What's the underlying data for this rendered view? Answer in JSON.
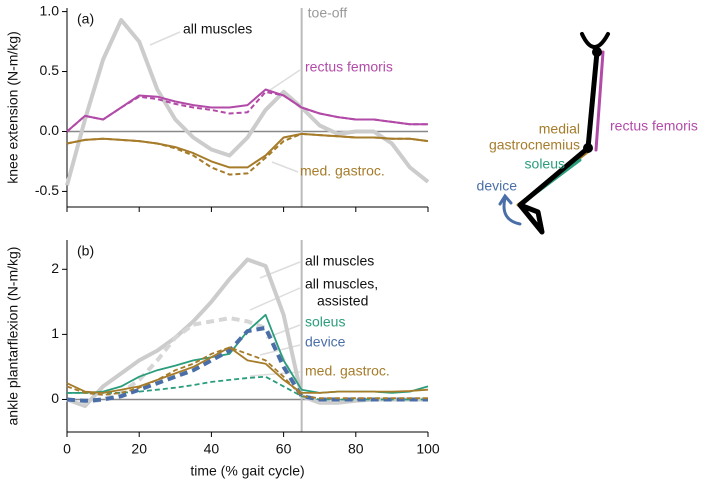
{
  "chart_data": [
    {
      "type": "line",
      "panel_label": "(a)",
      "y_label": "knee extension (N-m/kg)",
      "x": [
        0,
        5,
        10,
        15,
        20,
        25,
        30,
        35,
        40,
        45,
        50,
        55,
        60,
        65,
        70,
        75,
        80,
        85,
        90,
        95,
        100
      ],
      "xlim": [
        0,
        100
      ],
      "xticks": [
        0,
        20,
        40,
        60,
        80,
        100
      ],
      "ylim": [
        -0.63,
        1.03
      ],
      "yticks": [
        -0.5,
        {
          "value": 0,
          "label": "0.0"
        },
        0.5,
        {
          "value": 1,
          "label": "1.0"
        }
      ],
      "toe_off": 65,
      "toe_off_label": "toe-off",
      "series": [
        {
          "name": "all muscles",
          "color": "#cccccc",
          "width": 4,
          "dashed": false,
          "values": [
            -0.45,
            0.1,
            0.6,
            0.93,
            0.75,
            0.35,
            0.1,
            -0.05,
            -0.15,
            -0.2,
            -0.05,
            0.18,
            0.33,
            0.2,
            0.05,
            -0.02,
            0,
            0,
            -0.1,
            -0.3,
            -0.42
          ]
        },
        {
          "name": "rectus femoris",
          "color": "#b24aa8",
          "width": 2,
          "dashed": false,
          "values": [
            0,
            0.13,
            0.1,
            0.2,
            0.3,
            0.29,
            0.25,
            0.22,
            0.2,
            0.2,
            0.22,
            0.35,
            0.3,
            0.2,
            0.15,
            0.12,
            0.1,
            0.1,
            0.08,
            0.06,
            0.06
          ]
        },
        {
          "color": "#b24aa8",
          "width": 2,
          "dashed": true,
          "values": [
            0,
            0.13,
            0.1,
            0.2,
            0.29,
            0.27,
            0.23,
            0.2,
            0.18,
            0.15,
            0.16,
            0.33,
            0.3,
            0.2,
            0.15,
            0.12,
            0.1,
            0.1,
            0.08,
            0.06,
            0.06
          ]
        },
        {
          "name": "med. gastroc.",
          "color": "#a67c2a",
          "width": 2,
          "dashed": false,
          "values": [
            -0.1,
            -0.07,
            -0.06,
            -0.07,
            -0.08,
            -0.1,
            -0.13,
            -0.18,
            -0.25,
            -0.3,
            -0.3,
            -0.2,
            -0.05,
            -0.02,
            -0.03,
            -0.04,
            -0.05,
            -0.05,
            -0.06,
            -0.06,
            -0.08
          ]
        },
        {
          "color": "#a67c2a",
          "width": 2,
          "dashed": true,
          "values": [
            -0.1,
            -0.07,
            -0.06,
            -0.07,
            -0.08,
            -0.1,
            -0.14,
            -0.2,
            -0.3,
            -0.36,
            -0.35,
            -0.22,
            -0.08,
            -0.02,
            -0.03,
            -0.04,
            -0.05,
            -0.05,
            -0.06,
            -0.06,
            -0.08
          ]
        }
      ]
    },
    {
      "type": "line",
      "panel_label": "(b)",
      "y_label": "ankle plantarflexion (N-m/kg)",
      "x_label": "time (% gait cycle)",
      "x": [
        0,
        5,
        10,
        15,
        20,
        25,
        30,
        35,
        40,
        45,
        50,
        55,
        60,
        65,
        70,
        75,
        80,
        85,
        90,
        95,
        100
      ],
      "xlim": [
        0,
        100
      ],
      "xticks": [
        0,
        20,
        40,
        60,
        80,
        100
      ],
      "ylim": [
        -0.5,
        2.45
      ],
      "yticks": [
        0,
        1,
        2
      ],
      "toe_off": 65,
      "series": [
        {
          "name": "all muscles",
          "color": "#cccccc",
          "width": 4,
          "dashed": false,
          "values": [
            0,
            -0.1,
            0.2,
            0.4,
            0.6,
            0.75,
            0.95,
            1.2,
            1.5,
            1.85,
            2.15,
            2.05,
            1.3,
            0.05,
            -0.05,
            -0.05,
            -0.02,
            0,
            0,
            0,
            0
          ]
        },
        {
          "name": [
            "all muscles,",
            "assisted"
          ],
          "color": "#d6d6d6",
          "width": 4,
          "dashed": true,
          "values": [
            0,
            -0.05,
            0,
            0.1,
            0.3,
            0.6,
            0.95,
            1.15,
            1.2,
            1.25,
            1.2,
            1.1,
            0.6,
            0.05,
            -0.02,
            -0.02,
            0,
            0,
            0,
            0,
            0
          ]
        },
        {
          "name": "soleus",
          "color": "#2a9d7c",
          "width": 1.8,
          "dashed": false,
          "values": [
            0.1,
            0.1,
            0.12,
            0.2,
            0.35,
            0.45,
            0.52,
            0.6,
            0.65,
            0.7,
            1.05,
            1.3,
            0.6,
            0.15,
            0.1,
            0.12,
            0.12,
            0.12,
            0.1,
            0.12,
            0.2
          ]
        },
        {
          "color": "#2a9d7c",
          "width": 1.8,
          "dashed": true,
          "values": [
            0.1,
            0.1,
            0.1,
            0.1,
            0.12,
            0.15,
            0.18,
            0.22,
            0.27,
            0.3,
            0.33,
            0.35,
            0.2,
            0.05,
            0,
            0,
            0,
            0,
            0,
            0,
            0
          ]
        },
        {
          "name": "device",
          "color": "#4a6fa8",
          "width": 4,
          "dashed": true,
          "values": [
            0,
            -0.02,
            0,
            0.05,
            0.15,
            0.25,
            0.35,
            0.45,
            0.6,
            0.75,
            1.05,
            1.1,
            0.5,
            0.05,
            0,
            0,
            0,
            0,
            0,
            0,
            0
          ]
        },
        {
          "name": "med. gastroc.",
          "color": "#a67c2a",
          "width": 1.8,
          "dashed": false,
          "values": [
            0.25,
            0.12,
            0.1,
            0.15,
            0.2,
            0.3,
            0.4,
            0.5,
            0.65,
            0.8,
            0.6,
            0.55,
            0.3,
            0.1,
            0.1,
            0.12,
            0.12,
            0.12,
            0.12,
            0.13,
            0.15
          ]
        },
        {
          "color": "#a67c2a",
          "width": 1.8,
          "dashed": true,
          "values": [
            0.2,
            0.1,
            0.07,
            0.1,
            0.18,
            0.3,
            0.45,
            0.55,
            0.7,
            0.8,
            0.7,
            0.6,
            0.35,
            0.05,
            0.02,
            0.02,
            0.02,
            0.02,
            0.02,
            0.02,
            0.02
          ]
        }
      ]
    }
  ],
  "diagram": {
    "medial_gastrocnemius": [
      "medial",
      "gastrocnemius"
    ],
    "rectus_femoris": "rectus femoris",
    "soleus": "soleus",
    "device": "device"
  }
}
